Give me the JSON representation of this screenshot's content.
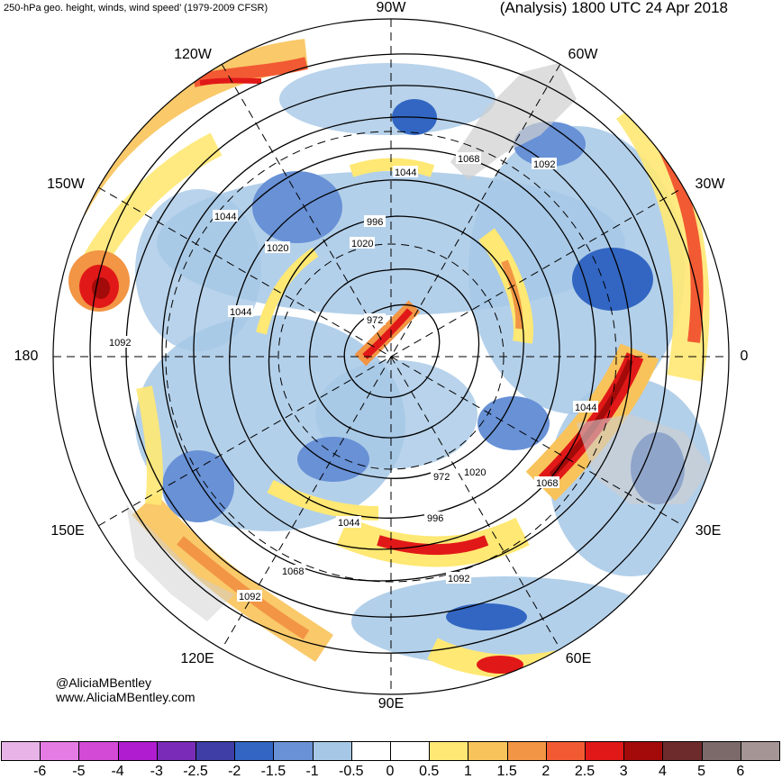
{
  "title_left": "250-hPa geo. height, winds, wind speed’ (1979-2009 CFSR)",
  "title_right": "(Analysis) 1800 UTC 24 Apr 2018",
  "credits": {
    "handle": "@AliciaMBentley",
    "site": "www.AliciaMBentley.com"
  },
  "longitude_labels": {
    "w90": "90W",
    "w60": "60W",
    "w30": "30W",
    "zero": "0",
    "e30": "30E",
    "e60": "60E",
    "e90": "90E",
    "e120": "120E",
    "e150": "150E",
    "d180": "180",
    "w150": "150W",
    "w120": "120W"
  },
  "contour_labels": [
    "1068",
    "1044",
    "1044",
    "996",
    "1020",
    "1092",
    "1020",
    "1044",
    "1092",
    "972",
    "1020",
    "1044",
    "1068",
    "972",
    "996",
    "1044",
    "1068",
    "1092",
    "1092",
    "1068"
  ],
  "colorbar": {
    "colors": [
      "#e8b4e8",
      "#e47ce4",
      "#d24ad6",
      "#b01cd0",
      "#7a2cb8",
      "#3e3ea6",
      "#3266c2",
      "#6891d6",
      "#a6c8e6",
      "#ffffff",
      "#ffffff",
      "#ffe873",
      "#f8c35a",
      "#f29544",
      "#f25a33",
      "#e11818",
      "#a30a0a",
      "#6e2b2b",
      "#7c6a6a",
      "#a59595"
    ],
    "labels": [
      "-6",
      "-5",
      "-4",
      "-3",
      "-2.5",
      "-2",
      "-1.5",
      "-1",
      "-0.5",
      "0",
      "0.5",
      "1",
      "1.5",
      "2",
      "2.5",
      "3",
      "4",
      "5",
      "6"
    ]
  }
}
